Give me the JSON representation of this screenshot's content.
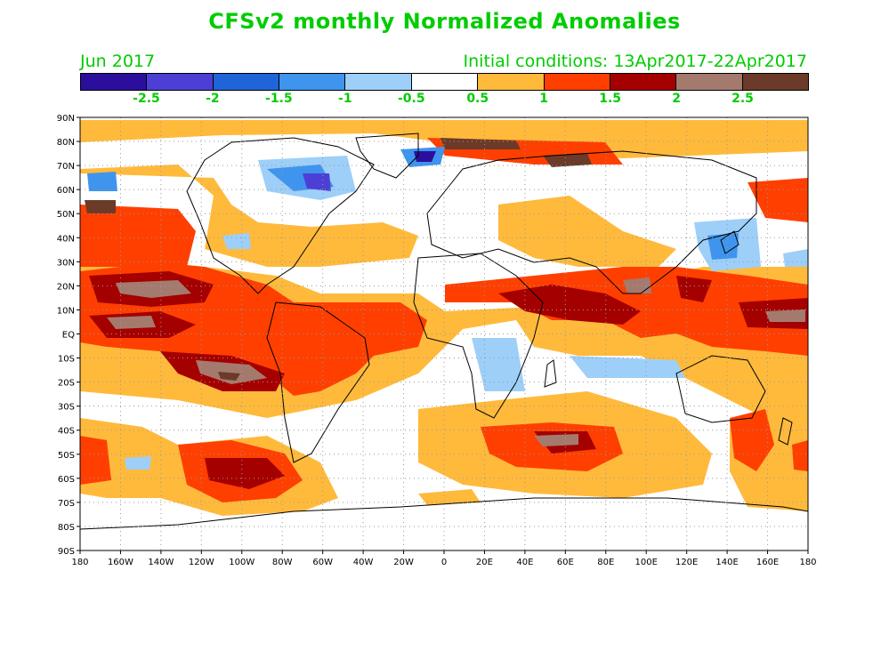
{
  "title": "CFSv2 monthly Normalized Anomalies",
  "month": "Jun 2017",
  "init": "Initial conditions: 13Apr2017-22Apr2017",
  "colorbar": {
    "colors": [
      "#2b0f9c",
      "#4d3fd6",
      "#1f64d8",
      "#3f94ee",
      "#9dcff8",
      "#ffffff",
      "#ffba3c",
      "#ff3f00",
      "#a50000",
      "#a57a6e",
      "#6b3a28"
    ],
    "labels": [
      "-2.5",
      "-2",
      "-1.5",
      "-1",
      "-0.5",
      "0.5",
      "1",
      "1.5",
      "2",
      "2.5"
    ]
  },
  "map": {
    "lat_labels": [
      "90N",
      "80N",
      "70N",
      "60N",
      "50N",
      "40N",
      "30N",
      "20N",
      "10N",
      "EQ",
      "10S",
      "20S",
      "30S",
      "40S",
      "50S",
      "60S",
      "70S",
      "80S",
      "90S"
    ],
    "lon_labels": [
      "180",
      "160W",
      "140W",
      "120W",
      "100W",
      "80W",
      "60W",
      "40W",
      "20W",
      "0",
      "20E",
      "40E",
      "60E",
      "80E",
      "100E",
      "120E",
      "140E",
      "160E",
      "180"
    ]
  }
}
